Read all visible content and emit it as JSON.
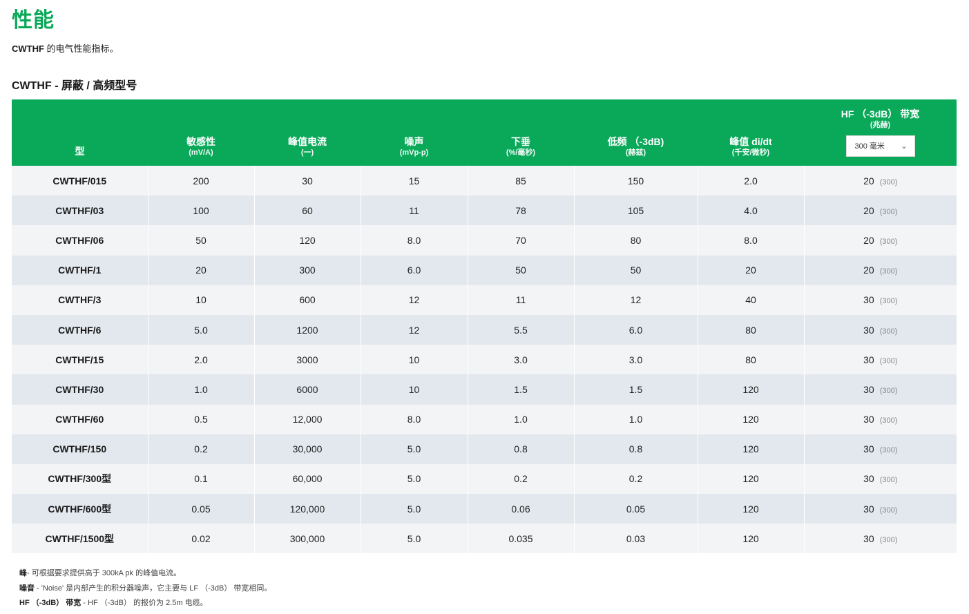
{
  "title": "性能",
  "intro": {
    "product": "CWTHF",
    "text": " 的电气性能指标。"
  },
  "section_title": "CWTHF - 屏蔽 / 高频型号",
  "table": {
    "headers": [
      {
        "label": "型",
        "unit": ""
      },
      {
        "label": "敏感性",
        "unit": "(mV/A)"
      },
      {
        "label": "峰值电流",
        "unit": "(一)"
      },
      {
        "label": "噪声",
        "unit": "(mVp-p)"
      },
      {
        "label": "下垂",
        "unit": "(%/毫秒)"
      },
      {
        "label": "低频 （-3dB)",
        "unit": "(赫兹)"
      },
      {
        "label": "峰值 di/dt",
        "unit": "(千安/微秒)"
      },
      {
        "label": "HF （-3dB） 带宽",
        "unit": "(兆赫)"
      }
    ],
    "hf_select": {
      "value": "300 毫米"
    },
    "rows": [
      {
        "model": "CWTHF/015",
        "sens": "200",
        "peak": "30",
        "noise": "15",
        "droop": "85",
        "lf": "150",
        "didt": "2.0",
        "hf": "20",
        "hf_ref": "(300)"
      },
      {
        "model": "CWTHF/03",
        "sens": "100",
        "peak": "60",
        "noise": "11",
        "droop": "78",
        "lf": "105",
        "didt": "4.0",
        "hf": "20",
        "hf_ref": "(300)"
      },
      {
        "model": "CWTHF/06",
        "sens": "50",
        "peak": "120",
        "noise": "8.0",
        "droop": "70",
        "lf": "80",
        "didt": "8.0",
        "hf": "20",
        "hf_ref": "(300)"
      },
      {
        "model": "CWTHF/1",
        "sens": "20",
        "peak": "300",
        "noise": "6.0",
        "droop": "50",
        "lf": "50",
        "didt": "20",
        "hf": "20",
        "hf_ref": "(300)"
      },
      {
        "model": "CWTHF/3",
        "sens": "10",
        "peak": "600",
        "noise": "12",
        "droop": "11",
        "lf": "12",
        "didt": "40",
        "hf": "30",
        "hf_ref": "(300)"
      },
      {
        "model": "CWTHF/6",
        "sens": "5.0",
        "peak": "1200",
        "noise": "12",
        "droop": "5.5",
        "lf": "6.0",
        "didt": "80",
        "hf": "30",
        "hf_ref": "(300)"
      },
      {
        "model": "CWTHF/15",
        "sens": "2.0",
        "peak": "3000",
        "noise": "10",
        "droop": "3.0",
        "lf": "3.0",
        "didt": "80",
        "hf": "30",
        "hf_ref": "(300)"
      },
      {
        "model": "CWTHF/30",
        "sens": "1.0",
        "peak": "6000",
        "noise": "10",
        "droop": "1.5",
        "lf": "1.5",
        "didt": "120",
        "hf": "30",
        "hf_ref": "(300)"
      },
      {
        "model": "CWTHF/60",
        "sens": "0.5",
        "peak": "12,000",
        "noise": "8.0",
        "droop": "1.0",
        "lf": "1.0",
        "didt": "120",
        "hf": "30",
        "hf_ref": "(300)"
      },
      {
        "model": "CWTHF/150",
        "sens": "0.2",
        "peak": "30,000",
        "noise": "5.0",
        "droop": "0.8",
        "lf": "0.8",
        "didt": "120",
        "hf": "30",
        "hf_ref": "(300)"
      },
      {
        "model": "CWTHF/300型",
        "sens": "0.1",
        "peak": "60,000",
        "noise": "5.0",
        "droop": "0.2",
        "lf": "0.2",
        "didt": "120",
        "hf": "30",
        "hf_ref": "(300)"
      },
      {
        "model": "CWTHF/600型",
        "sens": "0.05",
        "peak": "120,000",
        "noise": "5.0",
        "droop": "0.06",
        "lf": "0.05",
        "didt": "120",
        "hf": "30",
        "hf_ref": "(300)"
      },
      {
        "model": "CWTHF/1500型",
        "sens": "0.02",
        "peak": "300,000",
        "noise": "5.0",
        "droop": "0.035",
        "lf": "0.03",
        "didt": "120",
        "hf": "30",
        "hf_ref": "(300)"
      }
    ]
  },
  "notes": [
    {
      "term": "峰",
      "text": "- 可根据要求提供高于 300kA pk 的峰值电流。"
    },
    {
      "term": "噪音",
      "text": " - 'Noise' 是内部产生的积分器噪声，它主要与 LF （-3dB） 带宽相同。"
    },
    {
      "term": "HF （-3dB） 带宽",
      "text": " - HF （-3dB） 的报价为 2.5m 电缆。"
    }
  ]
}
